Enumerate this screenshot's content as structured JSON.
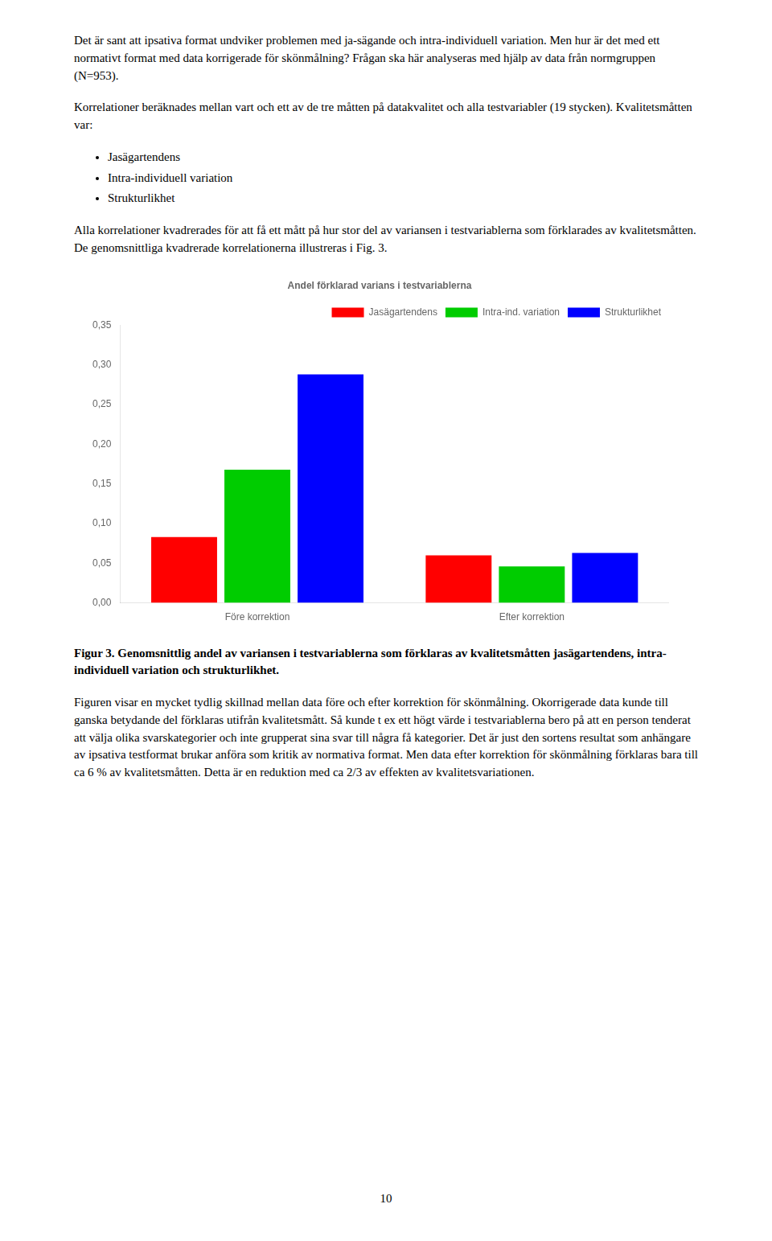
{
  "chart_data": {
    "type": "bar",
    "title": "Andel förklarad varians i testvariablerna",
    "categories": [
      "Före korrektion",
      "Efter korrektion"
    ],
    "series": [
      {
        "name": "Jasägartendens",
        "color": "#ff0000",
        "values": [
          0.083,
          0.06
        ]
      },
      {
        "name": "Intra-ind. variation",
        "color": "#00cc00",
        "values": [
          0.168,
          0.046
        ]
      },
      {
        "name": "Strukturlikhet",
        "color": "#0000ff",
        "values": [
          0.288,
          0.063
        ]
      }
    ],
    "ylim": [
      0,
      0.35
    ],
    "yticks": [
      {
        "value": 0.0,
        "label": "0,00"
      },
      {
        "value": 0.05,
        "label": "0,05"
      },
      {
        "value": 0.1,
        "label": "0,10"
      },
      {
        "value": 0.15,
        "label": "0,15"
      },
      {
        "value": 0.2,
        "label": "0,20"
      },
      {
        "value": 0.25,
        "label": "0,25"
      },
      {
        "value": 0.3,
        "label": "0,30"
      },
      {
        "value": 0.35,
        "label": "0,35"
      }
    ],
    "grid": false,
    "legend": "upper right",
    "annotations": [
      "Det är sant att ipsativa format undviker problemen med ja-sägande och intra-individuell variation. Men hur är det med ett normativt format med data korrigerade för skönmålning? Frågan ska här analyseras med hjälp av data från normgruppen (N=953).",
      "Korrelationer beräknades mellan vart och ett av de tre måtten på datakvalitet och alla testvariabler (19 stycken). Kvalitetsmåtten var:",
      "Jasägartendens",
      "Intra-individuell variation",
      "Strukturlikhet",
      "Alla korrelationer kvadrerades för att få ett mått på hur stor del av variansen i testvariablerna som förklarades av kvalitetsmåtten. De genomsnittliga kvadrerade korrelationerna illustreras i Fig. 3.",
      "Figur 3. Genomsnittlig andel av variansen i testvariablerna som förklaras av kvalitetsmåtten jasägartendens, intra-individuell variation och strukturlikhet.",
      "Figuren visar en mycket tydlig skillnad mellan data före och efter korrektion för skönmålning. Okorrigerade data kunde till ganska betydande del förklaras utifrån kvalitetsmått. Så kunde t ex ett högt värde i testvariablerna bero på att en person tenderat att välja olika svarskategorier och inte grupperat sina svar till några få kategorier. Det är just den sortens resultat som anhängare av ipsativa testformat brukar anföra som kritik av normativa format. Men data efter korrektion för skönmålning förklaras bara till ca 6 % av kvalitetsmåtten. Detta är en reduktion med ca 2/3 av effekten av kvalitetsvariationen.",
      "10"
    ]
  }
}
